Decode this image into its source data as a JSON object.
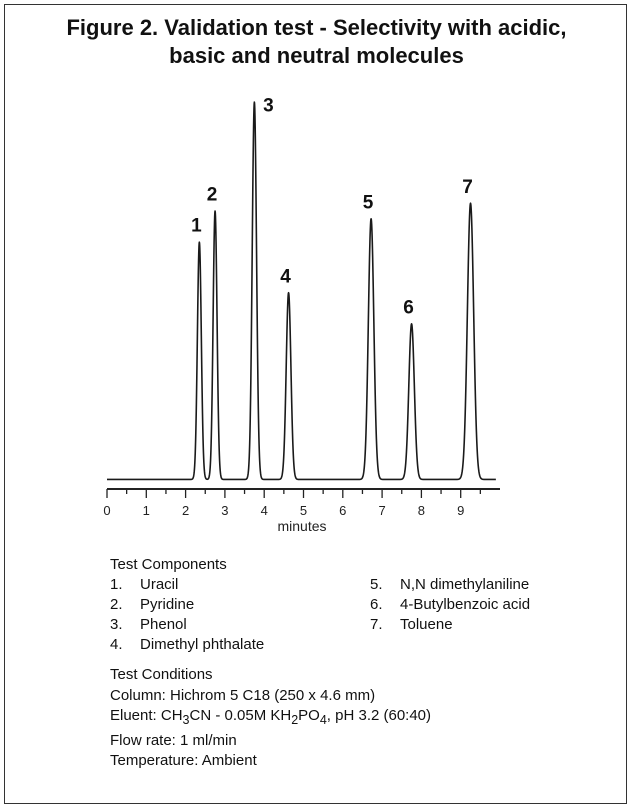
{
  "figure": {
    "title_line1": "Figure 2. Validation test - Selectivity with acidic,",
    "title_line2": "basic and neutral molecules"
  },
  "chart_data": {
    "type": "line",
    "title": "Figure 2. Validation test - Selectivity with acidic, basic and neutral molecules",
    "xlabel": "minutes",
    "ylabel": "",
    "xlim": [
      0,
      10
    ],
    "x_ticks": [
      "0",
      "1",
      "2",
      "3",
      "4",
      "5",
      "6",
      "7",
      "8",
      "9"
    ],
    "grid": false,
    "baseline": 0.02,
    "peaks": [
      {
        "label": "1",
        "x": 2.35,
        "height": 0.61,
        "width": 0.05
      },
      {
        "label": "2",
        "x": 2.75,
        "height": 0.69,
        "width": 0.05
      },
      {
        "label": "3",
        "x": 3.75,
        "height": 0.97,
        "width": 0.055
      },
      {
        "label": "4",
        "x": 4.62,
        "height": 0.48,
        "width": 0.06
      },
      {
        "label": "5",
        "x": 6.72,
        "height": 0.67,
        "width": 0.07
      },
      {
        "label": "6",
        "x": 7.75,
        "height": 0.4,
        "width": 0.07
      },
      {
        "label": "7",
        "x": 9.25,
        "height": 0.71,
        "width": 0.08
      }
    ]
  },
  "components": {
    "title": "Test Components",
    "items": [
      {
        "num": "1.",
        "name": "Uracil"
      },
      {
        "num": "2.",
        "name": "Pyridine"
      },
      {
        "num": "3.",
        "name": "Phenol"
      },
      {
        "num": "4.",
        "name": "Dimethyl phthalate"
      },
      {
        "num": "5.",
        "name": "N,N dimethylaniline"
      },
      {
        "num": "6.",
        "name": "4-Butylbenzoic acid"
      },
      {
        "num": "7.",
        "name": "Toluene"
      }
    ]
  },
  "conditions": {
    "title": "Test Conditions",
    "column": "Column: Hichrom 5 C18 (250 x 4.6 mm)",
    "eluent_prefix": "Eluent: CH",
    "eluent_sub1": "3",
    "eluent_mid1": "CN - 0.05M KH",
    "eluent_sub2": "2",
    "eluent_mid2": "PO",
    "eluent_sub3": "4",
    "eluent_suffix": ", pH 3.2 (60:40)",
    "flow_rate": "Flow rate: 1 ml/min",
    "temperature": "Temperature: Ambient"
  }
}
